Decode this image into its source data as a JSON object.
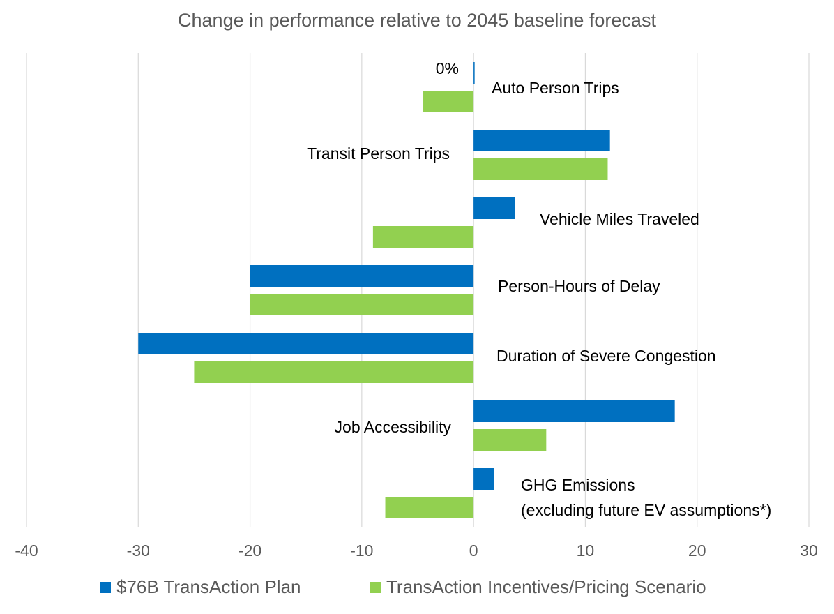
{
  "chart_data": {
    "type": "bar",
    "orientation": "horizontal",
    "title": "Change in performance relative to 2045 baseline forecast",
    "xlim": [
      -40,
      30
    ],
    "x_ticks": [
      "-40",
      "-30",
      "-20",
      "-10",
      "0",
      "10",
      "20",
      "30"
    ],
    "x_tick_values": [
      -40,
      -30,
      -20,
      -10,
      0,
      10,
      20,
      30
    ],
    "grid": "vertical",
    "legend_position": "bottom",
    "categories": [
      "Auto Person Trips",
      "Transit Person Trips",
      "Vehicle Miles Traveled",
      "Person-Hours of Delay",
      "Duration of Severe Congestion",
      "Job Accessibility",
      "GHG Emissions\n(excluding future EV assumptions*)"
    ],
    "series": [
      {
        "name": "$76B TransAction Plan",
        "color": "#0070C0",
        "values": [
          0,
          12.2,
          3.7,
          -20,
          -30,
          18,
          1.8
        ]
      },
      {
        "name": "TransAction Incentives/Pricing Scenario",
        "color": "#92D050",
        "values": [
          -4.5,
          12,
          -9,
          -20,
          -25,
          6.5,
          -7.9
        ]
      }
    ],
    "data_labels": [
      {
        "series": 0,
        "category": 0,
        "text": "0%"
      }
    ]
  },
  "legend": {
    "items": [
      {
        "label": "$76B TransAction Plan",
        "color": "#0070C0"
      },
      {
        "label": "TransAction Incentives/Pricing Scenario",
        "color": "#92D050"
      }
    ]
  }
}
